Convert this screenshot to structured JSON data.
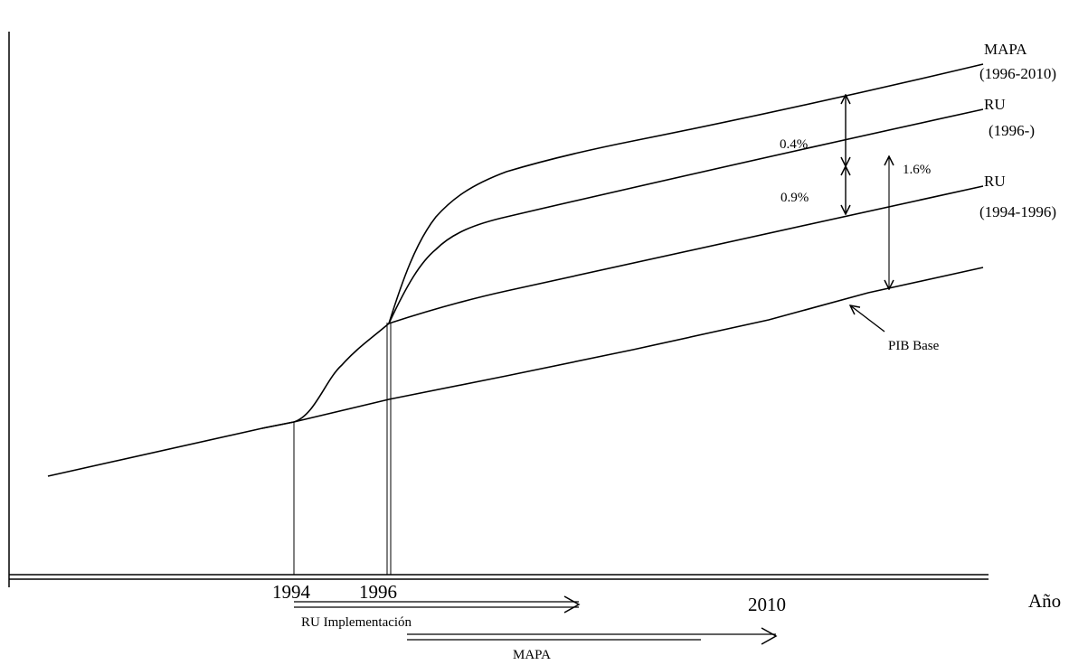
{
  "chart_data": {
    "type": "line",
    "title": "",
    "xlabel": "Año",
    "ylabel": "",
    "grid": false,
    "x_ticks": [
      "1994",
      "1996",
      "2010"
    ],
    "series": [
      {
        "name": "MAPA",
        "label_lines": [
          "MAPA",
          "(1996-2010)"
        ]
      },
      {
        "name": "RU (1996-)",
        "label_lines": [
          "RU",
          "(1996-)"
        ]
      },
      {
        "name": "RU (1994-1996)",
        "label_lines": [
          "RU",
          "(1994-1996)"
        ]
      },
      {
        "name": "PIB Base",
        "label_lines": [
          "PIB Base"
        ]
      }
    ],
    "gaps": [
      {
        "between": [
          "MAPA",
          "RU (1996-)"
        ],
        "label": "0.4%"
      },
      {
        "between": [
          "RU (1996-)",
          "RU (1994-1996)"
        ],
        "label": "0.9%"
      },
      {
        "between": [
          "RU (1996-)",
          "PIB Base"
        ],
        "label": "1.6%"
      }
    ],
    "periods": [
      {
        "label": "RU Implementación",
        "from": "1994",
        "direction": "right"
      },
      {
        "label": "MAPA",
        "from": "1996",
        "direction": "right"
      }
    ]
  }
}
